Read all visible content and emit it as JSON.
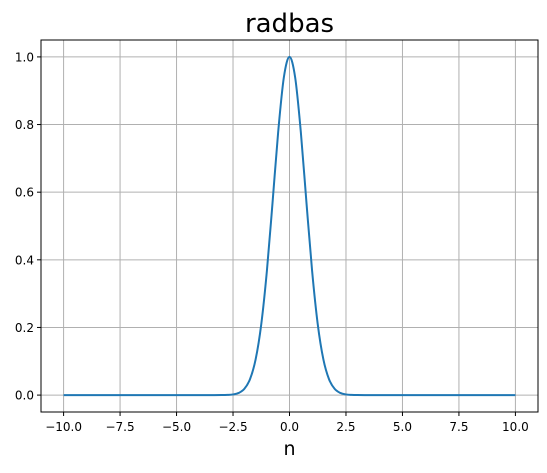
{
  "chart_data": {
    "type": "line",
    "title": "radbas",
    "xlabel": "n",
    "ylabel": "",
    "xlim": [
      -11.0,
      11.0
    ],
    "ylim": [
      -0.05,
      1.05
    ],
    "xticks": [
      -10.0,
      -7.5,
      -5.0,
      -2.5,
      0.0,
      2.5,
      5.0,
      7.5,
      10.0
    ],
    "xtick_labels": [
      "−10.0",
      "−7.5",
      "−5.0",
      "−2.5",
      "0.0",
      "2.5",
      "5.0",
      "7.5",
      "10.0"
    ],
    "yticks": [
      0.0,
      0.2,
      0.4,
      0.6,
      0.8,
      1.0
    ],
    "ytick_labels": [
      "0.0",
      "0.2",
      "0.4",
      "0.6",
      "0.8",
      "1.0"
    ],
    "grid": true,
    "colors": {
      "line": "#1f77b4",
      "grid": "#b0b0b0",
      "axes": "#000000"
    },
    "series": [
      {
        "x": [
          -10.0,
          -9.0,
          -8.0,
          -7.0,
          -6.0,
          -5.0,
          -4.0,
          -3.5,
          -3.0,
          -2.75,
          -2.5,
          -2.25,
          -2.0,
          -1.75,
          -1.5,
          -1.25,
          -1.0,
          -0.75,
          -0.5,
          -0.25,
          0.0,
          0.25,
          0.5,
          0.75,
          1.0,
          1.25,
          1.5,
          1.75,
          2.0,
          2.25,
          2.5,
          2.75,
          3.0,
          3.5,
          4.0,
          5.0,
          6.0,
          7.0,
          8.0,
          9.0,
          10.0
        ],
        "y": [
          0.0,
          0.0,
          0.0,
          0.0,
          0.0,
          0.0,
          0.0,
          0.0,
          0.0001,
          0.0005,
          0.0019,
          0.0063,
          0.0183,
          0.0468,
          0.1054,
          0.2096,
          0.3679,
          0.5698,
          0.7788,
          0.9394,
          1.0,
          0.9394,
          0.7788,
          0.5698,
          0.3679,
          0.2096,
          0.1054,
          0.0468,
          0.0183,
          0.0063,
          0.0019,
          0.0005,
          0.0001,
          0.0,
          0.0,
          0.0,
          0.0,
          0.0,
          0.0,
          0.0,
          0.0
        ]
      }
    ]
  }
}
